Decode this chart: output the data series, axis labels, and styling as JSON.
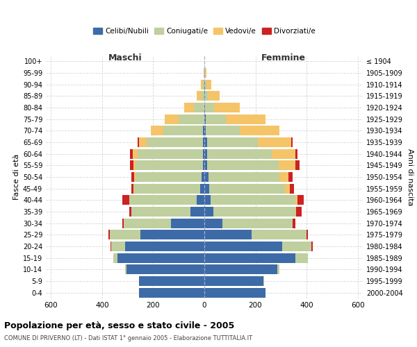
{
  "age_groups": [
    "0-4",
    "5-9",
    "10-14",
    "15-19",
    "20-24",
    "25-29",
    "30-34",
    "35-39",
    "40-44",
    "45-49",
    "50-54",
    "55-59",
    "60-64",
    "65-69",
    "70-74",
    "75-79",
    "80-84",
    "85-89",
    "90-94",
    "95-99",
    "100+"
  ],
  "birth_years": [
    "2000-2004",
    "1995-1999",
    "1990-1994",
    "1985-1989",
    "1980-1984",
    "1975-1979",
    "1970-1974",
    "1965-1969",
    "1960-1964",
    "1955-1959",
    "1950-1954",
    "1945-1949",
    "1940-1944",
    "1935-1939",
    "1930-1934",
    "1925-1929",
    "1920-1924",
    "1915-1919",
    "1910-1914",
    "1905-1909",
    "≤ 1904"
  ],
  "male": {
    "celibe": [
      255,
      255,
      305,
      340,
      310,
      250,
      130,
      55,
      30,
      15,
      10,
      5,
      5,
      5,
      5,
      0,
      0,
      0,
      0,
      0,
      0
    ],
    "coniugato": [
      0,
      0,
      5,
      15,
      55,
      120,
      185,
      230,
      265,
      260,
      260,
      265,
      255,
      220,
      155,
      100,
      40,
      10,
      5,
      2,
      0
    ],
    "vedovo": [
      0,
      0,
      0,
      0,
      0,
      0,
      0,
      0,
      0,
      3,
      5,
      8,
      20,
      30,
      50,
      55,
      40,
      20,
      8,
      2,
      0
    ],
    "divorziato": [
      0,
      0,
      0,
      0,
      3,
      5,
      5,
      8,
      25,
      8,
      10,
      12,
      10,
      5,
      0,
      0,
      0,
      0,
      0,
      0,
      0
    ]
  },
  "female": {
    "nubile": [
      240,
      230,
      285,
      355,
      305,
      185,
      70,
      35,
      25,
      20,
      15,
      10,
      10,
      10,
      5,
      5,
      3,
      2,
      2,
      0,
      0
    ],
    "coniugata": [
      0,
      5,
      10,
      50,
      115,
      215,
      275,
      320,
      330,
      295,
      280,
      280,
      255,
      200,
      135,
      80,
      35,
      12,
      5,
      2,
      0
    ],
    "vedova": [
      0,
      0,
      0,
      0,
      0,
      0,
      0,
      5,
      10,
      20,
      35,
      65,
      90,
      130,
      155,
      155,
      100,
      45,
      20,
      5,
      0
    ],
    "divorziata": [
      0,
      0,
      0,
      0,
      3,
      5,
      10,
      20,
      25,
      15,
      15,
      18,
      10,
      5,
      0,
      0,
      0,
      0,
      0,
      0,
      0
    ]
  },
  "colors": {
    "celibe": "#3D6BA8",
    "coniugato": "#BFCF9E",
    "vedovo": "#F5C469",
    "divorziato": "#CC2222"
  },
  "xlim": [
    -620,
    620
  ],
  "xticks": [
    -600,
    -400,
    -200,
    0,
    200,
    400,
    600
  ],
  "xtick_labels": [
    "600",
    "400",
    "200",
    "0",
    "200",
    "400",
    "600"
  ],
  "title": "Popolazione per età, sesso e stato civile - 2005",
  "subtitle": "COMUNE DI PRIVERNO (LT) - Dati ISTAT 1° gennaio 2005 - Elaborazione TUTTITALIA.IT",
  "ylabel_left": "Fasce di età",
  "ylabel_right": "Anni di nascita",
  "legend_labels": [
    "Celibi/Nubili",
    "Coniugati/e",
    "Vedovi/e",
    "Divorziati/e"
  ],
  "header_male": "Maschi",
  "header_female": "Femmine",
  "background_color": "#FFFFFF",
  "plot_bg_color": "#FFFFFF",
  "grid_color": "#CCCCCC",
  "bar_height": 0.85
}
